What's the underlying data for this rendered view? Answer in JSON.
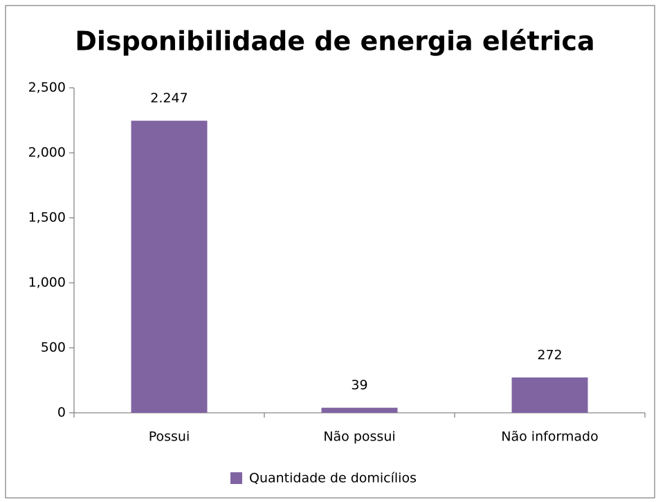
{
  "chart_data": {
    "type": "bar",
    "title": "Disponibilidade de energia elétrica",
    "categories": [
      "Possui",
      "Não possui",
      "Não informado"
    ],
    "series": [
      {
        "name": "Quantidade de domicílios",
        "color": "#8064a2",
        "values": [
          2247,
          39,
          272
        ],
        "value_labels": [
          "2.247",
          "39",
          "272"
        ]
      }
    ],
    "ylim": [
      0,
      2500
    ],
    "yticks": [
      0,
      500,
      {
        "value": 1000,
        "label": "1,000"
      },
      {
        "value": 1500,
        "label": "1,500"
      },
      {
        "value": 2000,
        "label": "2,000"
      },
      {
        "value": 2500,
        "label": "2,500"
      }
    ],
    "grid": false,
    "legend": "bottom"
  }
}
